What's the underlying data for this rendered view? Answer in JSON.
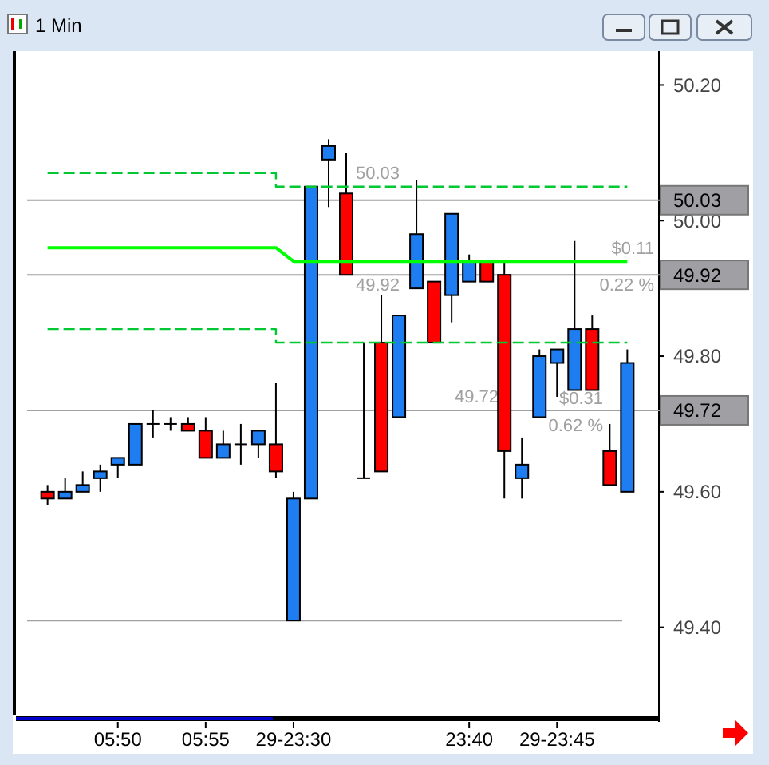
{
  "chart_data": {
    "type": "candlestick",
    "title": "1 Min",
    "categories": [
      null,
      null,
      null,
      null,
      "05:50",
      null,
      null,
      null,
      null,
      "05:55",
      null,
      null,
      null,
      null,
      "29-23:30",
      null,
      null,
      null,
      null,
      null,
      null,
      null,
      null,
      null,
      "23:40",
      null,
      null,
      null,
      null,
      "29-23:45",
      null,
      null,
      null,
      null
    ],
    "ohlc": [
      [
        49.6,
        49.61,
        49.58,
        49.59
      ],
      [
        49.59,
        49.62,
        49.59,
        49.6
      ],
      [
        49.6,
        49.63,
        49.6,
        49.61
      ],
      [
        49.62,
        49.64,
        49.6,
        49.63
      ],
      [
        49.64,
        49.65,
        49.62,
        49.65
      ],
      [
        49.64,
        49.7,
        49.64,
        49.7
      ],
      [
        49.7,
        49.72,
        49.68,
        49.7
      ],
      [
        49.7,
        49.71,
        49.69,
        49.7
      ],
      [
        49.7,
        49.71,
        49.69,
        49.69
      ],
      [
        49.69,
        49.71,
        49.65,
        49.65
      ],
      [
        49.65,
        49.69,
        49.65,
        49.67
      ],
      [
        49.67,
        49.7,
        49.64,
        49.67
      ],
      [
        49.67,
        49.69,
        49.65,
        49.69
      ],
      [
        49.67,
        49.76,
        49.62,
        49.63
      ],
      [
        49.41,
        49.6,
        49.41,
        49.59
      ],
      [
        49.59,
        50.05,
        49.59,
        50.05
      ],
      [
        50.09,
        50.12,
        50.02,
        50.11
      ],
      [
        50.04,
        50.1,
        49.92,
        49.92
      ],
      [
        49.62,
        49.82,
        49.62,
        49.62
      ],
      [
        49.82,
        49.89,
        49.63,
        49.63
      ],
      [
        49.71,
        49.86,
        49.71,
        49.86
      ],
      [
        49.9,
        50.06,
        49.9,
        49.98
      ],
      [
        49.91,
        49.91,
        49.82,
        49.82
      ],
      [
        49.89,
        50.01,
        49.85,
        50.01
      ],
      [
        49.91,
        49.95,
        49.91,
        49.94
      ],
      [
        49.94,
        49.94,
        49.91,
        49.91
      ],
      [
        49.92,
        49.94,
        49.59,
        49.66
      ],
      [
        49.62,
        49.68,
        49.59,
        49.64
      ],
      [
        49.71,
        49.81,
        49.71,
        49.8
      ],
      [
        49.79,
        49.81,
        49.74,
        49.81
      ],
      [
        49.75,
        49.97,
        49.75,
        49.84
      ],
      [
        49.84,
        49.86,
        49.75,
        49.75
      ],
      [
        49.66,
        49.7,
        49.61,
        49.61
      ],
      [
        49.6,
        49.81,
        49.6,
        49.79
      ]
    ],
    "colors": [
      "#ff0000",
      "#1e7df0",
      "#1e7df0",
      "#1e7df0",
      "#1e7df0",
      "#1e7df0",
      "#000000",
      "#000000",
      "#ff0000",
      "#ff0000",
      "#1e7df0",
      "#000000",
      "#1e7df0",
      "#ff0000",
      "#1e7df0",
      "#1e7df0",
      "#1e7df0",
      "#ff0000",
      "#000000",
      "#ff0000",
      "#1e7df0",
      "#1e7df0",
      "#ff0000",
      "#1e7df0",
      "#1e7df0",
      "#ff0000",
      "#ff0000",
      "#1e7df0",
      "#1e7df0",
      "#1e7df0",
      "#1e7df0",
      "#ff0000",
      "#ff0000",
      "#1e7df0"
    ],
    "series": [
      {
        "type": "step",
        "line_style": "dashed",
        "color": "#00c832",
        "values": [
          50.07,
          50.07,
          50.07,
          50.07,
          50.07,
          50.07,
          50.07,
          50.07,
          50.07,
          50.07,
          50.07,
          50.07,
          50.07,
          50.07,
          50.05,
          50.05,
          50.05,
          50.05,
          50.05,
          50.05,
          50.05,
          50.05,
          50.05,
          50.05,
          50.05,
          50.05,
          50.05,
          50.05,
          50.05,
          50.05,
          50.05,
          50.05,
          50.05,
          50.05
        ]
      },
      {
        "type": "line",
        "line_style": "solid",
        "color": "#00ff00",
        "values": [
          49.96,
          49.96,
          49.96,
          49.96,
          49.96,
          49.96,
          49.96,
          49.96,
          49.96,
          49.96,
          49.96,
          49.96,
          49.96,
          49.96,
          49.94,
          49.94,
          49.94,
          49.94,
          49.94,
          49.94,
          49.94,
          49.94,
          49.94,
          49.94,
          49.94,
          49.94,
          49.94,
          49.94,
          49.94,
          49.94,
          49.94,
          49.94,
          49.94,
          49.94
        ]
      },
      {
        "type": "step",
        "line_style": "dashed",
        "color": "#00c832",
        "values": [
          49.84,
          49.84,
          49.84,
          49.84,
          49.84,
          49.84,
          49.84,
          49.84,
          49.84,
          49.84,
          49.84,
          49.84,
          49.84,
          49.84,
          49.82,
          49.82,
          49.82,
          49.82,
          49.82,
          49.82,
          49.82,
          49.82,
          49.82,
          49.82,
          49.82,
          49.82,
          49.82,
          49.82,
          49.82,
          49.82,
          49.82,
          49.82,
          49.82,
          49.82
        ]
      }
    ],
    "ylim": [
      49.27,
      50.25
    ],
    "yticks": [
      {
        "value": 49.4,
        "label": "49.40"
      },
      {
        "value": 49.6,
        "label": "49.60"
      },
      {
        "value": 49.8,
        "label": "49.80"
      },
      {
        "value": 50.0,
        "label": "50.00"
      },
      {
        "value": 50.2,
        "label": "50.20"
      }
    ],
    "ref_lines": [
      {
        "axis": "y",
        "value": 50.03,
        "label": "50.03",
        "color": "#a0a0a0"
      },
      {
        "axis": "y",
        "value": 49.92,
        "label": "49.92",
        "color": "#a0a0a0"
      },
      {
        "axis": "y",
        "value": 49.72,
        "label": "49.72",
        "color": "#a0a0a0"
      },
      {
        "axis": "y",
        "value": 49.41,
        "color": "#a0a0a0"
      }
    ],
    "annotations": [
      "50.03",
      "49.92",
      "49.72",
      "$0.11",
      "0.22 %",
      "$0.31",
      "0.62 %"
    ],
    "grid": false
  }
}
